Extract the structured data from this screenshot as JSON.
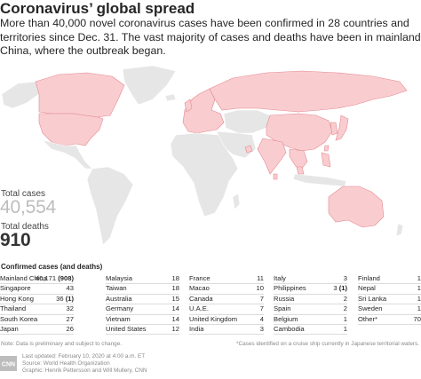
{
  "title": "Coronavirus’ global spread",
  "intro": "More than 40,000 novel coronavirus cases have been confirmed in 28 countries and territories since Dec. 31. The vast majority of cases and deaths have been in mainland China, where the outbreak began.",
  "stats": {
    "cases_label": "Total cases",
    "cases_value": "40,554",
    "deaths_label": "Total deaths",
    "deaths_value": "910"
  },
  "colors": {
    "affected": "#f9cdd0",
    "affected_border": "#e4888f",
    "unaffected": "#e6e6e6",
    "border": "#ffffff"
  },
  "table": {
    "title": "Confirmed cases (and deaths)",
    "columns": [
      [
        {
          "country": "Mainland China",
          "cases": "40,171",
          "deaths": "(908)"
        },
        {
          "country": "Singapore",
          "cases": "43",
          "deaths": ""
        },
        {
          "country": "Hong Kong",
          "cases": "36",
          "deaths": "(1)"
        },
        {
          "country": "Thailand",
          "cases": "32",
          "deaths": ""
        },
        {
          "country": "South Korea",
          "cases": "27",
          "deaths": ""
        },
        {
          "country": "Japan",
          "cases": "26",
          "deaths": ""
        }
      ],
      [
        {
          "country": "Malaysia",
          "cases": "18",
          "deaths": ""
        },
        {
          "country": "Taiwan",
          "cases": "18",
          "deaths": ""
        },
        {
          "country": "Australia",
          "cases": "15",
          "deaths": ""
        },
        {
          "country": "Germany",
          "cases": "14",
          "deaths": ""
        },
        {
          "country": "Vietnam",
          "cases": "14",
          "deaths": ""
        },
        {
          "country": "United States",
          "cases": "12",
          "deaths": ""
        }
      ],
      [
        {
          "country": "France",
          "cases": "11",
          "deaths": ""
        },
        {
          "country": "Macao",
          "cases": "10",
          "deaths": ""
        },
        {
          "country": "Canada",
          "cases": "7",
          "deaths": ""
        },
        {
          "country": "U.A.E.",
          "cases": "7",
          "deaths": ""
        },
        {
          "country": "United Kingdom",
          "cases": "4",
          "deaths": ""
        },
        {
          "country": "India",
          "cases": "3",
          "deaths": ""
        }
      ],
      [
        {
          "country": "Italy",
          "cases": "3",
          "deaths": ""
        },
        {
          "country": "Philippines",
          "cases": "3",
          "deaths": "(1)"
        },
        {
          "country": "Russia",
          "cases": "2",
          "deaths": ""
        },
        {
          "country": "Spain",
          "cases": "2",
          "deaths": ""
        },
        {
          "country": "Belgium",
          "cases": "1",
          "deaths": ""
        },
        {
          "country": "Cambodia",
          "cases": "1",
          "deaths": ""
        }
      ],
      [
        {
          "country": "Finland",
          "cases": "1",
          "deaths": ""
        },
        {
          "country": "Nepal",
          "cases": "1",
          "deaths": ""
        },
        {
          "country": "Sri Lanka",
          "cases": "1",
          "deaths": ""
        },
        {
          "country": "Sweden",
          "cases": "1",
          "deaths": ""
        },
        {
          "country": "Other*",
          "cases": "70",
          "deaths": ""
        }
      ]
    ]
  },
  "footer": {
    "note_left": "Note: Data is preliminary and subject to change.",
    "note_right": "*Cases identified on a cruise ship currently in Japanese territorial waters.",
    "updated": "Last updated: February 10, 2020 at 4:00 a.m. ET",
    "source": "Source: World Health Organization",
    "graphic": "Graphic: Henrik Pettersson and Will Mullery, CNN",
    "logo_text": "CNN"
  }
}
